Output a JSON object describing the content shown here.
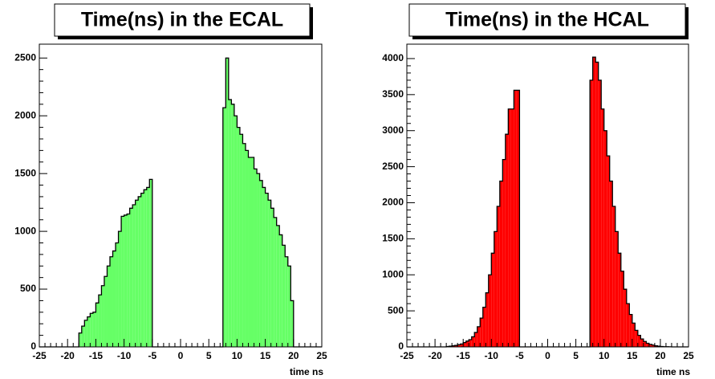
{
  "chart_data": [
    {
      "type": "histogram",
      "title": "Time(ns) in the ECAL",
      "x_label": "time ns",
      "color": "#66ff66",
      "bins": [
        -25,
        -24.5,
        -24,
        -23.5,
        -23,
        -22.5,
        -22,
        -21.5,
        -21,
        -20.5,
        -20,
        -19.5,
        -19,
        -18.5,
        -18,
        -17.5,
        -17,
        -16.5,
        -16,
        -15.5,
        -15,
        -14.5,
        -14,
        -13.5,
        -13,
        -12.5,
        -12,
        -11.5,
        -11,
        -10.5,
        -10,
        -9.5,
        -9,
        -8.5,
        -8,
        -7.5,
        -7,
        -6.5,
        -6,
        -5.5,
        -5,
        -4.5,
        -4,
        -3.5,
        -3,
        -2.5,
        -2,
        -1.5,
        -1,
        -0.5,
        0,
        0.5,
        1,
        1.5,
        2,
        2.5,
        3,
        3.5,
        4,
        4.5,
        5,
        5.5,
        6,
        6.5,
        7,
        7.5,
        8,
        8.5,
        9,
        9.5,
        10,
        10.5,
        11,
        11.5,
        12,
        12.5,
        13,
        13.5,
        14,
        14.5,
        15,
        15.5,
        16,
        16.5,
        17,
        17.5,
        18,
        18.5,
        19,
        19.5,
        20,
        20.5,
        21,
        21.5,
        22,
        22.5,
        23,
        23.5,
        24,
        24.5,
        25
      ],
      "values": [
        0,
        0,
        0,
        0,
        0,
        0,
        0,
        0,
        0,
        0,
        0,
        0,
        0,
        0,
        120,
        180,
        230,
        260,
        290,
        300,
        380,
        450,
        530,
        610,
        700,
        780,
        830,
        900,
        1000,
        1130,
        1140,
        1150,
        1200,
        1230,
        1270,
        1300,
        1330,
        1360,
        1380,
        1450,
        0,
        0,
        0,
        0,
        0,
        0,
        0,
        0,
        0,
        0,
        0,
        0,
        0,
        0,
        0,
        0,
        0,
        0,
        0,
        0,
        0,
        0,
        0,
        0,
        0,
        2070,
        2500,
        2140,
        2100,
        2000,
        1900,
        1840,
        1760,
        1700,
        1640,
        1640,
        1540,
        1500,
        1440,
        1380,
        1330,
        1270,
        1200,
        1120,
        1050,
        970,
        880,
        780,
        700,
        400,
        0,
        0,
        0,
        0,
        0,
        0,
        0,
        0,
        0,
        0
      ],
      "xlim": [
        -25,
        25
      ],
      "xticks": [
        -25,
        -20,
        -15,
        -10,
        -5,
        0,
        5,
        10,
        15,
        20,
        25
      ],
      "ylim": [
        0,
        2620
      ],
      "yticks": [
        0,
        500,
        1000,
        1500,
        2000,
        2500
      ]
    },
    {
      "type": "histogram",
      "title": "Time(ns) in the HCAL",
      "x_label": "time ns",
      "color": "#ff0000",
      "bins": [
        -25,
        -24.5,
        -24,
        -23.5,
        -23,
        -22.5,
        -22,
        -21.5,
        -21,
        -20.5,
        -20,
        -19.5,
        -19,
        -18.5,
        -18,
        -17.5,
        -17,
        -16.5,
        -16,
        -15.5,
        -15,
        -14.5,
        -14,
        -13.5,
        -13,
        -12.5,
        -12,
        -11.5,
        -11,
        -10.5,
        -10,
        -9.5,
        -9,
        -8.5,
        -8,
        -7.5,
        -7,
        -6.5,
        -6,
        -5.5,
        -5,
        -4.5,
        -4,
        -3.5,
        -3,
        -2.5,
        -2,
        -1.5,
        -1,
        -0.5,
        0,
        0.5,
        1,
        1.5,
        2,
        2.5,
        3,
        3.5,
        4,
        4.5,
        5,
        5.5,
        6,
        6.5,
        7,
        7.5,
        8,
        8.5,
        9,
        9.5,
        10,
        10.5,
        11,
        11.5,
        12,
        12.5,
        13,
        13.5,
        14,
        14.5,
        15,
        15.5,
        16,
        16.5,
        17,
        17.5,
        18,
        18.5,
        19,
        19.5,
        20,
        20.5,
        21,
        21.5,
        22,
        22.5,
        23,
        23.5,
        24,
        24.5,
        25
      ],
      "values": [
        0,
        0,
        0,
        0,
        0,
        0,
        0,
        0,
        0,
        0,
        0,
        0,
        0,
        0,
        5,
        10,
        15,
        20,
        30,
        40,
        60,
        80,
        100,
        140,
        200,
        280,
        400,
        550,
        750,
        1000,
        1300,
        1600,
        1950,
        2300,
        2600,
        2950,
        3300,
        3300,
        3560,
        3560,
        0,
        0,
        0,
        0,
        0,
        0,
        0,
        0,
        0,
        0,
        0,
        0,
        0,
        0,
        0,
        0,
        0,
        0,
        0,
        0,
        0,
        0,
        0,
        0,
        0,
        3700,
        4020,
        3950,
        3700,
        3300,
        3000,
        2650,
        2300,
        1950,
        1600,
        1300,
        1050,
        800,
        600,
        450,
        330,
        230,
        160,
        110,
        75,
        50,
        35,
        25,
        15,
        10,
        5,
        3,
        2,
        1,
        0,
        0,
        0,
        0,
        0,
        0
      ],
      "xlim": [
        -25,
        25
      ],
      "xticks": [
        -25,
        -20,
        -15,
        -10,
        -5,
        0,
        5,
        10,
        15,
        20,
        25
      ],
      "ylim": [
        0,
        4200
      ],
      "yticks": [
        0,
        500,
        1000,
        1500,
        2000,
        2500,
        3000,
        3500,
        4000
      ]
    }
  ]
}
